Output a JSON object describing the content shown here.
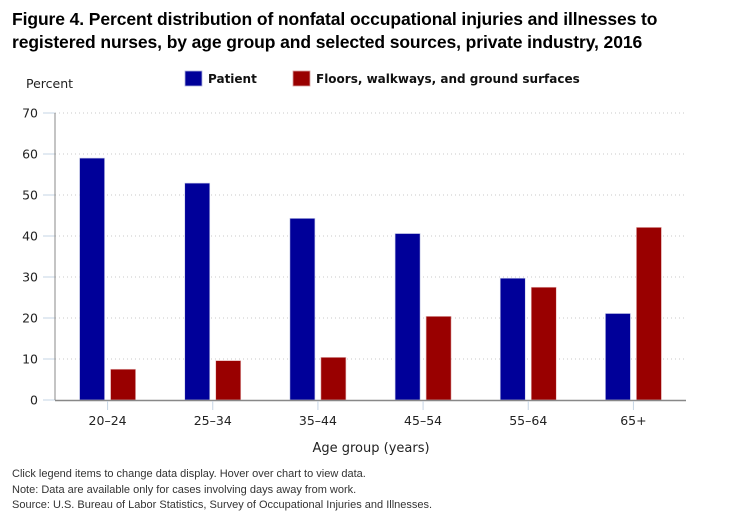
{
  "title": "Figure 4. Percent distribution of nonfatal occupational injuries and illnesses to registered nurses, by age group and selected sources, private industry, 2016",
  "notes": [
    "Click legend items to change data display. Hover over chart to view data.",
    "Note: Data are available only for cases involving days away from work.",
    "Source: U.S. Bureau of Labor Statistics, Survey of Occupational Injuries and Illnesses."
  ],
  "chart_data": {
    "type": "bar",
    "title": "Figure 4. Percent distribution of nonfatal occupational injuries and illnesses to registered nurses, by age group and selected sources, private industry, 2016",
    "xlabel": "Age group (years)",
    "ylabel": "Percent",
    "ylim": [
      0,
      70
    ],
    "yticks": [
      0,
      10,
      20,
      30,
      40,
      50,
      60,
      70
    ],
    "grid": true,
    "legend_position": "top",
    "categories": [
      "20–24",
      "25–34",
      "35–44",
      "45–54",
      "55–64",
      "65+"
    ],
    "series": [
      {
        "name": "Patient",
        "color": "#000099",
        "values": [
          59.0,
          52.9,
          44.3,
          40.6,
          29.7,
          21.1
        ]
      },
      {
        "name": "Floors, walkways, and ground surfaces",
        "color": "#990000",
        "values": [
          7.5,
          9.6,
          10.4,
          20.4,
          27.5,
          42.1
        ]
      }
    ]
  }
}
